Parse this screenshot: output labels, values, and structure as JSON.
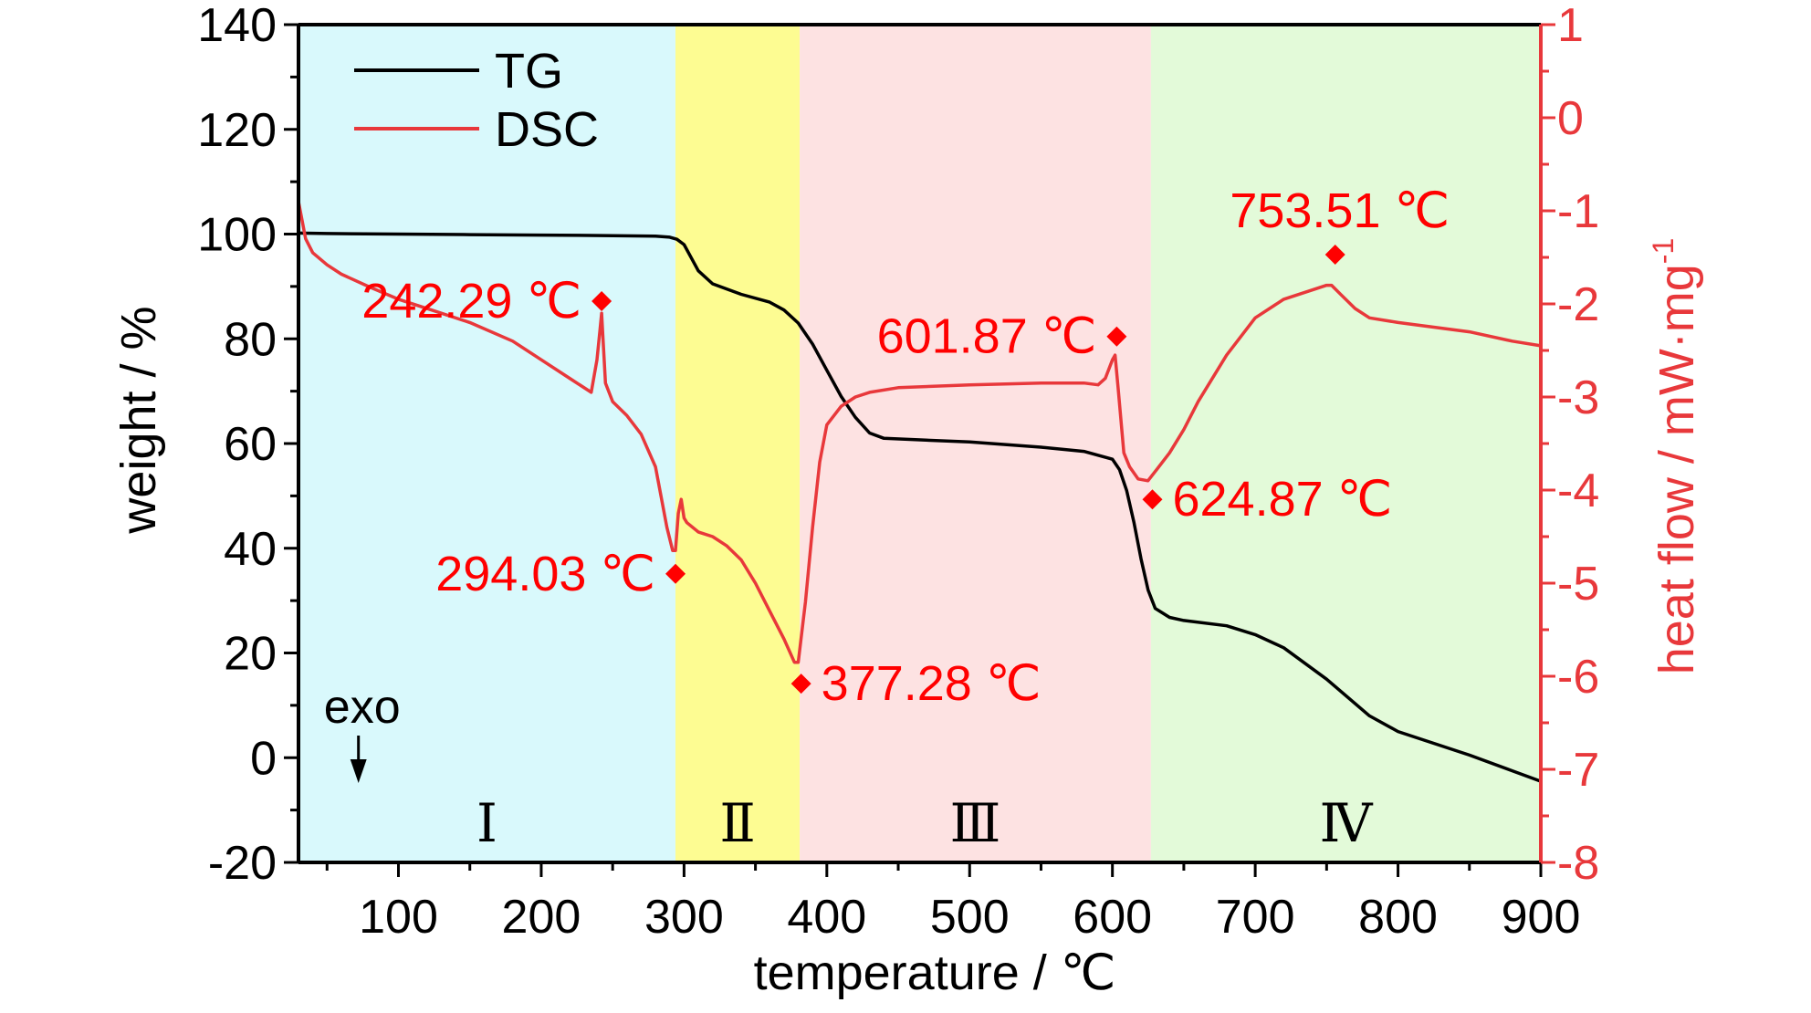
{
  "chart_data": {
    "type": "line",
    "xlabel": "temperature / ℃",
    "ylabel_left": "weight / %",
    "ylabel_right": "heat flow / mW·mg",
    "ylabel_right_sup": "-1",
    "xlim": [
      30,
      900
    ],
    "xticks": [
      100,
      200,
      300,
      400,
      500,
      600,
      700,
      800,
      900
    ],
    "ylim_left": [
      -20,
      140
    ],
    "yticks_left": [
      -20,
      0,
      20,
      40,
      60,
      80,
      100,
      120,
      140
    ],
    "ylim_right": [
      -8,
      1
    ],
    "yticks_right": [
      -8,
      -7,
      -6,
      -5,
      -4,
      -3,
      -2,
      -1,
      0,
      1
    ],
    "legend_position": "top-left",
    "grid": false,
    "colors": {
      "TG": "#000000",
      "DSC": "#e8383b",
      "annotation": "#ff0000",
      "right_axis": "#e8383b"
    },
    "regions": [
      {
        "label": "Ⅰ",
        "from": 30,
        "to": 294,
        "color": "#d9f9fc"
      },
      {
        "label": "Ⅱ",
        "from": 294,
        "to": 381,
        "color": "#fdfc92"
      },
      {
        "label": "Ⅲ",
        "from": 381,
        "to": 627,
        "color": "#fde2e2"
      },
      {
        "label": "Ⅳ",
        "from": 627,
        "to": 900,
        "color": "#e3fad9"
      }
    ],
    "series": [
      {
        "name": "TG",
        "axis": "left",
        "x": [
          30,
          50,
          100,
          150,
          200,
          250,
          280,
          290,
          295,
          300,
          305,
          310,
          320,
          340,
          360,
          370,
          380,
          390,
          400,
          410,
          420,
          430,
          440,
          500,
          550,
          580,
          600,
          605,
          610,
          615,
          620,
          625,
          630,
          640,
          650,
          680,
          700,
          720,
          750,
          780,
          800,
          850,
          880,
          900
        ],
        "y": [
          100.2,
          100.1,
          100.0,
          99.9,
          99.8,
          99.7,
          99.6,
          99.4,
          99.0,
          98.0,
          95.5,
          93.0,
          90.5,
          88.5,
          87.0,
          85.5,
          83.0,
          79.0,
          74.0,
          69.0,
          65.0,
          62.0,
          61.0,
          60.3,
          59.3,
          58.5,
          57.0,
          55.0,
          51.0,
          45.0,
          38.0,
          32.0,
          28.5,
          26.8,
          26.2,
          25.2,
          23.5,
          21.0,
          15.0,
          8.0,
          5.0,
          0.5,
          -2.5,
          -4.5
        ]
      },
      {
        "name": "DSC",
        "axis": "right",
        "x": [
          30,
          35,
          40,
          50,
          60,
          80,
          100,
          120,
          150,
          180,
          200,
          220,
          235,
          239,
          241,
          242.29,
          243,
          245,
          250,
          260,
          270,
          280,
          288,
          292,
          294.03,
          296,
          298,
          300,
          302,
          310,
          320,
          330,
          340,
          350,
          360,
          370,
          377.28,
          380,
          385,
          390,
          395,
          400,
          410,
          420,
          430,
          450,
          500,
          550,
          580,
          590,
          595,
          600,
          601.87,
          604,
          608,
          612,
          618,
          624.87,
          630,
          640,
          650,
          660,
          680,
          700,
          720,
          740,
          750,
          753.51,
          760,
          770,
          780,
          800,
          850,
          880,
          900
        ],
        "y": [
          -0.9,
          -1.3,
          -1.45,
          -1.58,
          -1.68,
          -1.82,
          -1.95,
          -2.05,
          -2.2,
          -2.4,
          -2.6,
          -2.8,
          -2.95,
          -2.6,
          -2.3,
          -2.1,
          -2.3,
          -2.85,
          -3.05,
          -3.2,
          -3.4,
          -3.75,
          -4.4,
          -4.65,
          -4.65,
          -4.25,
          -4.1,
          -4.3,
          -4.35,
          -4.45,
          -4.5,
          -4.6,
          -4.75,
          -5.0,
          -5.3,
          -5.6,
          -5.85,
          -5.85,
          -5.2,
          -4.4,
          -3.7,
          -3.3,
          -3.1,
          -3.0,
          -2.95,
          -2.9,
          -2.87,
          -2.85,
          -2.85,
          -2.87,
          -2.8,
          -2.6,
          -2.55,
          -2.9,
          -3.6,
          -3.75,
          -3.88,
          -3.9,
          -3.8,
          -3.6,
          -3.35,
          -3.05,
          -2.55,
          -2.15,
          -1.95,
          -1.85,
          -1.8,
          -1.8,
          -1.9,
          -2.05,
          -2.15,
          -2.2,
          -2.3,
          -2.4,
          -2.45
        ]
      }
    ],
    "annotations": [
      {
        "text": "242.29 ℃",
        "x": 242.29,
        "y": -1.97,
        "axis": "right",
        "side": "left"
      },
      {
        "text": "294.03 ℃",
        "x": 294.03,
        "y": -4.9,
        "axis": "right",
        "side": "left"
      },
      {
        "text": "377.28 ℃",
        "x": 382,
        "y": -6.08,
        "axis": "right",
        "side": "right"
      },
      {
        "text": "601.87 ℃",
        "x": 603,
        "y": -2.35,
        "axis": "right",
        "side": "left"
      },
      {
        "text": "624.87 ℃",
        "x": 628,
        "y": -4.1,
        "axis": "right",
        "side": "right"
      },
      {
        "text": "753.51 ℃",
        "x": 756,
        "y": -1.47,
        "axis": "right",
        "side": "above"
      }
    ],
    "exo_label": "exo",
    "exo_x": 72
  }
}
